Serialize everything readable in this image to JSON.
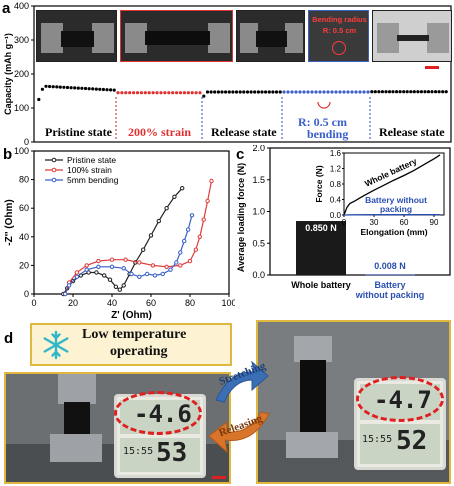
{
  "panels": {
    "a": "a",
    "b": "b",
    "c": "c",
    "d": "d"
  },
  "panel_a": {
    "photo_labels": {
      "bending_radius": "Bending radius",
      "radius_value": "R: 0.5 cm"
    },
    "states": [
      "Pristine state",
      "200% strain",
      "Release state",
      "R: 0.5 cm",
      "bending",
      "Release state"
    ],
    "colors": {
      "pristine": "#000000",
      "strain": "#e03030",
      "release": "#000000",
      "bending": "#3a5fc8"
    }
  },
  "panel_d": {
    "header": "Low temperature operating",
    "header_line1": "Low temperature",
    "header_line2": "operating",
    "snowflake_icon": "snowflake-icon",
    "stretching": "Stretching",
    "releasing": "Releasing",
    "left_temp": "-4.6",
    "left_humidity": "53",
    "right_temp": "-4.7",
    "right_humidity": "52",
    "left_time": "15:55",
    "right_time": "15:55"
  },
  "chart_data": [
    {
      "id": "a",
      "type": "scatter",
      "xlabel": "",
      "ylabel": "Capacity (mAh g⁻¹)",
      "ylim": [
        0,
        400
      ],
      "yticks": [
        "0",
        "100",
        "200",
        "300",
        "400"
      ],
      "series": [
        {
          "name": "Pristine state",
          "color": "#000000",
          "n_points": 22,
          "first": 125,
          "second": 155,
          "plateau": 165,
          "end": 152
        },
        {
          "name": "200% strain",
          "color": "#e03030",
          "n_points": 22,
          "plateau": 145
        },
        {
          "name": "Release state",
          "color": "#000000",
          "n_points": 22,
          "start": 135,
          "plateau": 147
        },
        {
          "name": "R: 0.5 cm bending",
          "color": "#3a5fc8",
          "n_points": 22,
          "plateau": 147
        },
        {
          "name": "Release state",
          "color": "#000000",
          "n_points": 22,
          "plateau": 148
        }
      ]
    },
    {
      "id": "b",
      "type": "line",
      "xlabel": "Z' (Ohm)",
      "ylabel": "-Z'' (Ohm)",
      "xlim": [
        0,
        100
      ],
      "ylim": [
        0,
        100
      ],
      "xticks": [
        "0",
        "20",
        "40",
        "60",
        "80",
        "100"
      ],
      "yticks": [
        "0",
        "20",
        "40",
        "60",
        "80",
        "100"
      ],
      "series": [
        {
          "name": "Pristine state",
          "color": "#222222",
          "x": [
            15,
            17,
            20,
            24,
            28,
            32,
            36,
            39,
            42,
            44,
            46,
            49,
            52,
            56,
            60,
            64,
            68,
            72,
            76
          ],
          "y": [
            0,
            4,
            9,
            13,
            15,
            15,
            13,
            10,
            5,
            3,
            6,
            14,
            22,
            31,
            41,
            51,
            60,
            68,
            74
          ]
        },
        {
          "name": "100% strain",
          "color": "#e03a3a",
          "x": [
            16,
            18,
            22,
            27,
            33,
            40,
            47,
            54,
            61,
            68,
            75,
            80,
            83,
            85,
            87,
            89,
            91
          ],
          "y": [
            0,
            8,
            15,
            20,
            23,
            24,
            24,
            22,
            20,
            19,
            20,
            23,
            31,
            40,
            52,
            65,
            79
          ]
        },
        {
          "name": "5mm bending",
          "color": "#3a5fc8",
          "x": [
            16,
            18,
            22,
            27,
            33,
            40,
            46,
            50,
            54,
            58,
            62,
            66,
            70,
            73,
            75,
            77,
            79,
            81
          ],
          "y": [
            0,
            6,
            12,
            17,
            19,
            19,
            18,
            14,
            12,
            14,
            13,
            14,
            17,
            22,
            29,
            37,
            45,
            55
          ]
        }
      ]
    },
    {
      "id": "c",
      "type": "bar",
      "ylabel": "Average loading force (N)",
      "ylim": [
        0,
        2.0
      ],
      "yticks": [
        "0.0",
        "0.5",
        "1.0",
        "1.5",
        "2.0"
      ],
      "categories": [
        "Whole battery",
        "Battery without packing"
      ],
      "values": [
        0.85,
        0.008
      ],
      "value_labels": [
        "0.850 N",
        "0.008 N"
      ],
      "category_lines": [
        [
          "Whole battery"
        ],
        [
          "Battery",
          "without packing"
        ]
      ],
      "inset": {
        "type": "line",
        "xlabel": "Elongation (mm)",
        "ylabel": "Force (N)",
        "xlim": [
          0,
          100
        ],
        "ylim": [
          0,
          1.6
        ],
        "xticks": [
          "0",
          "30",
          "60",
          "90"
        ],
        "yticks": [
          "0.0",
          "0.4",
          "0.8",
          "1.2",
          "1.6"
        ],
        "series": [
          {
            "name": "Whole battery",
            "color": "#000000",
            "x": [
              0,
              3,
              6,
              10,
              20,
              30,
              40,
              50,
              60,
              70,
              80,
              90,
              96
            ],
            "y": [
              0,
              0.2,
              0.3,
              0.35,
              0.5,
              0.64,
              0.77,
              0.9,
              1.02,
              1.15,
              1.3,
              1.45,
              1.55
            ]
          },
          {
            "name": "Battery without packing",
            "color": "#2a4fb0",
            "x": [
              0,
              10,
              30,
              50,
              70,
              90,
              96
            ],
            "y": [
              0.0,
              0.005,
              0.008,
              0.008,
              0.008,
              0.008,
              0.008
            ]
          }
        ],
        "labels": {
          "whole": "Whole battery",
          "without1": "Battery without",
          "without2": "packing"
        }
      }
    }
  ]
}
